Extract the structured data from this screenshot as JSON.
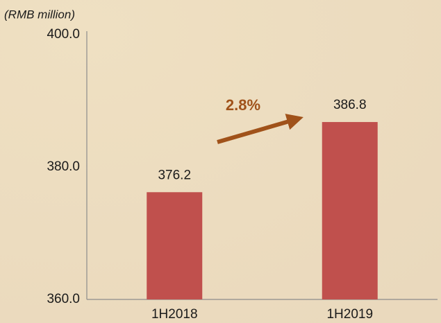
{
  "chart_data": {
    "type": "bar",
    "y_axis_label": "(RMB million)",
    "categories": [
      "1H2018",
      "1H2019"
    ],
    "values": [
      376.2,
      386.8
    ],
    "color": "#c0504d",
    "ylim": [
      360,
      400
    ],
    "yticks": [
      {
        "value": 360,
        "label": "360.0"
      },
      {
        "value": 380,
        "label": "380.0"
      },
      {
        "value": 400,
        "label": "400.0"
      }
    ],
    "annotation": "2.8%",
    "annotation_color": "#a0521a",
    "grid": false
  }
}
